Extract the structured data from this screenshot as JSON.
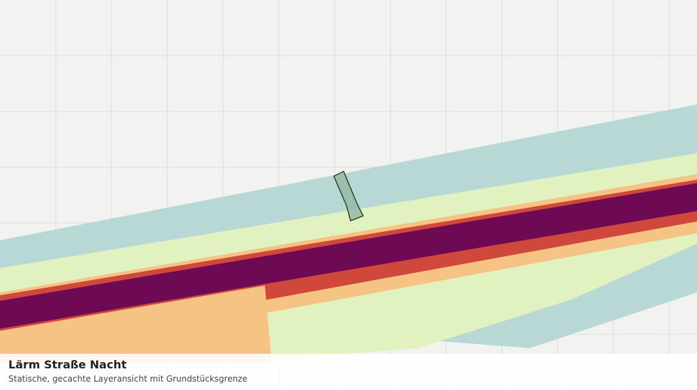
{
  "title": "Lärm Straße Nacht",
  "subtitle": "Statische, gecachte Layeransicht mit Grundstücksgrenze"
}
